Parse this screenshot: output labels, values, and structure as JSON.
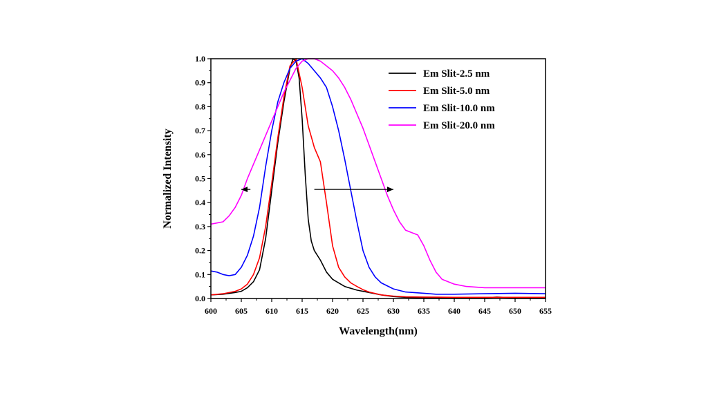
{
  "chart_data": {
    "type": "line",
    "title": "",
    "xlabel": "Wavelength(nm)",
    "ylabel": "Normalized Intensity",
    "xlim": [
      600,
      655
    ],
    "ylim": [
      0.0,
      1.0
    ],
    "xticks": [
      600,
      605,
      610,
      615,
      620,
      625,
      630,
      635,
      640,
      645,
      650,
      655
    ],
    "yticks": [
      0.0,
      0.1,
      0.2,
      0.3,
      0.4,
      0.5,
      0.6,
      0.7,
      0.8,
      0.9,
      1.0
    ],
    "xtick_labels": [
      "600",
      "605",
      "610",
      "615",
      "620",
      "625",
      "630",
      "635",
      "640",
      "645",
      "650",
      "655"
    ],
    "ytick_labels": [
      "0.0",
      "0.1",
      "0.2",
      "0.3",
      "0.4",
      "0.5",
      "0.6",
      "0.7",
      "0.8",
      "0.9",
      "1.0"
    ],
    "legend_position": "top-right",
    "grid": false,
    "annotations": [
      {
        "type": "arrow",
        "from": [
          606.5,
          0.455
        ],
        "to": [
          605.0,
          0.455
        ]
      },
      {
        "type": "arrow",
        "from": [
          617.0,
          0.455
        ],
        "to": [
          630.0,
          0.455
        ]
      }
    ],
    "series": [
      {
        "name": "Em Slit-2.5 nm",
        "color": "#000000",
        "x": [
          600,
          602,
          604,
          605,
          606,
          607,
          608,
          609,
          610,
          611,
          612,
          613,
          613.5,
          614,
          614.5,
          615,
          615.5,
          616,
          616.5,
          617,
          618,
          619,
          620,
          621,
          622,
          624,
          626,
          628,
          630,
          632,
          635,
          640,
          645,
          647,
          650,
          652,
          655
        ],
        "y": [
          0.015,
          0.018,
          0.025,
          0.03,
          0.045,
          0.07,
          0.12,
          0.25,
          0.45,
          0.65,
          0.82,
          0.96,
          1.0,
          0.99,
          0.92,
          0.75,
          0.52,
          0.33,
          0.24,
          0.2,
          0.16,
          0.11,
          0.08,
          0.065,
          0.05,
          0.035,
          0.025,
          0.015,
          0.008,
          0.005,
          0.003,
          0.002,
          0.003,
          0.006,
          0.003,
          0.002,
          0.001
        ]
      },
      {
        "name": "Em Slit-5.0 nm",
        "color": "#ff0000",
        "x": [
          600,
          602,
          604,
          605,
          606,
          607,
          608,
          609,
          610,
          611,
          612,
          613,
          614,
          615,
          616,
          617,
          618,
          619,
          620,
          621,
          622,
          623,
          624,
          625,
          626,
          628,
          630,
          632,
          635,
          640,
          645,
          650,
          655
        ],
        "y": [
          0.015,
          0.02,
          0.03,
          0.04,
          0.06,
          0.1,
          0.17,
          0.3,
          0.48,
          0.67,
          0.84,
          0.97,
          1.0,
          0.88,
          0.72,
          0.63,
          0.57,
          0.4,
          0.22,
          0.13,
          0.09,
          0.065,
          0.05,
          0.037,
          0.027,
          0.015,
          0.01,
          0.007,
          0.006,
          0.005,
          0.005,
          0.005,
          0.005
        ]
      },
      {
        "name": "Em Slit-10.0 nm",
        "color": "#0000ff",
        "x": [
          600,
          601,
          602,
          603,
          604,
          605,
          606,
          607,
          608,
          609,
          610,
          611,
          612,
          613,
          614,
          615,
          616,
          617,
          618,
          619,
          620,
          621,
          622,
          623,
          624,
          625,
          626,
          627,
          628,
          630,
          632,
          635,
          637,
          640,
          645,
          650,
          655
        ],
        "y": [
          0.115,
          0.11,
          0.1,
          0.095,
          0.1,
          0.13,
          0.18,
          0.26,
          0.38,
          0.55,
          0.7,
          0.82,
          0.9,
          0.96,
          0.99,
          1.0,
          0.98,
          0.95,
          0.92,
          0.88,
          0.8,
          0.7,
          0.58,
          0.45,
          0.32,
          0.2,
          0.13,
          0.09,
          0.065,
          0.04,
          0.027,
          0.022,
          0.018,
          0.018,
          0.02,
          0.022,
          0.02
        ]
      },
      {
        "name": "Em Slit-20.0 nm",
        "color": "#ff00ff",
        "x": [
          600,
          601,
          602,
          603,
          604,
          605,
          606,
          607,
          608,
          610,
          612,
          614,
          615,
          616,
          617,
          618,
          619,
          620,
          621,
          622,
          623,
          624,
          625,
          626,
          627,
          628,
          629,
          630,
          631,
          632,
          633,
          634,
          635,
          636,
          637,
          638,
          640,
          642,
          645,
          650,
          655
        ],
        "y": [
          0.31,
          0.315,
          0.32,
          0.345,
          0.38,
          0.43,
          0.5,
          0.56,
          0.62,
          0.74,
          0.86,
          0.96,
          0.99,
          1.0,
          1.0,
          0.99,
          0.97,
          0.95,
          0.92,
          0.88,
          0.83,
          0.77,
          0.71,
          0.64,
          0.57,
          0.5,
          0.43,
          0.37,
          0.32,
          0.285,
          0.275,
          0.265,
          0.22,
          0.16,
          0.11,
          0.08,
          0.06,
          0.05,
          0.045,
          0.045,
          0.045
        ]
      }
    ]
  }
}
